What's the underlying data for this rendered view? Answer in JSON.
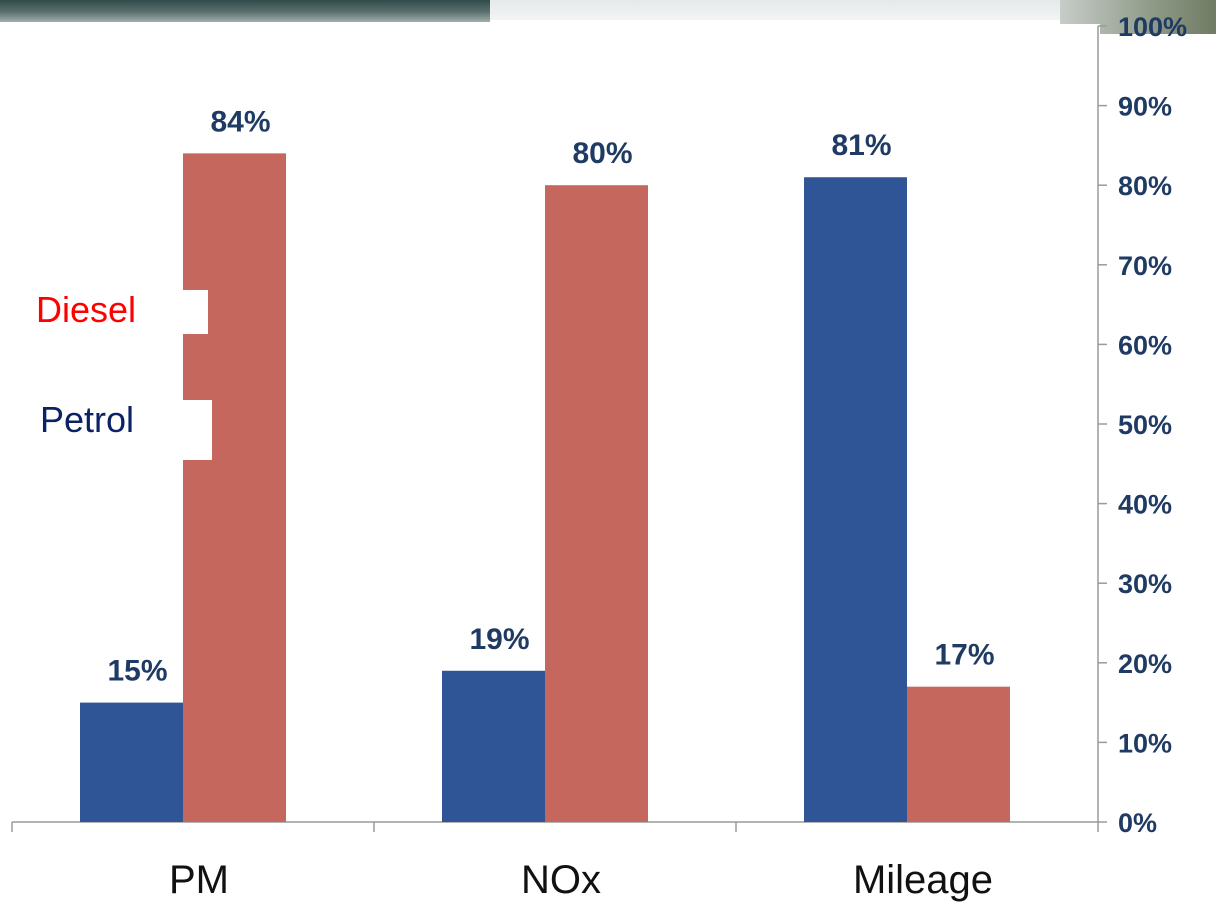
{
  "chart_data": {
    "type": "bar",
    "categories": [
      "PM",
      "NOx",
      "Mileage"
    ],
    "series": [
      {
        "name": "Petrol",
        "values": [
          15,
          19,
          81
        ],
        "color": "#2f5597"
      },
      {
        "name": "Diesel",
        "values": [
          84,
          80,
          17
        ],
        "color": "#c5675c"
      }
    ],
    "data_labels": [
      [
        "15%",
        "19%",
        "81%"
      ],
      [
        "84%",
        "80%",
        "17%"
      ]
    ],
    "y_ticks": [
      "0%",
      "10%",
      "20%",
      "30%",
      "40%",
      "50%",
      "60%",
      "70%",
      "80%",
      "90%",
      "100%"
    ],
    "ylim": [
      0,
      100
    ],
    "y_axis_side": "right",
    "grid": false,
    "legend": {
      "placement": "left",
      "items": [
        {
          "label": "Diesel",
          "color": "#ff0000"
        },
        {
          "label": "Petrol",
          "color": "#0a2266"
        }
      ]
    }
  }
}
